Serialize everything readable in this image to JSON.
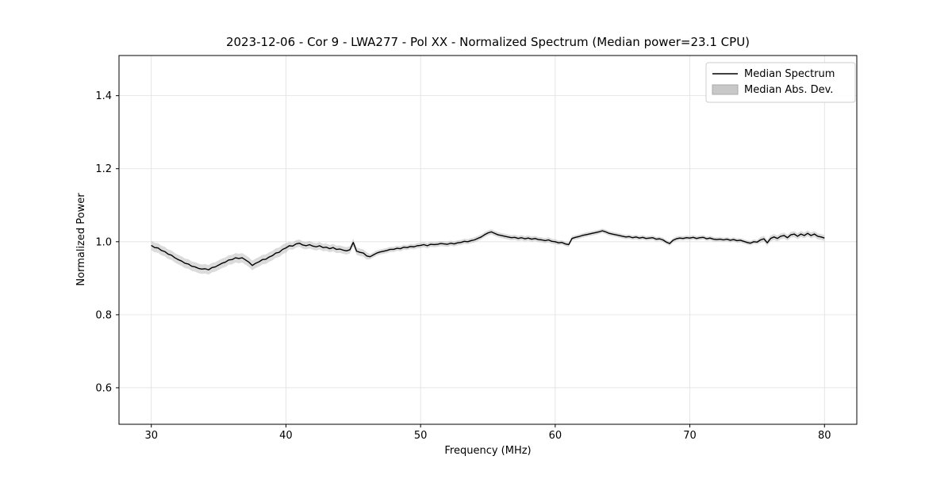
{
  "figure": {
    "background": "#ffffff",
    "title": "2023-12-06 - Cor 9 - LWA277 - Pol XX - Normalized Spectrum (Median power=23.1 CPU)",
    "xlabel": "Frequency (MHz)",
    "ylabel": "Normalized Power"
  },
  "legend": {
    "items": [
      {
        "label": "Median Spectrum",
        "type": "line",
        "color": "#000000"
      },
      {
        "label": "Median Abs. Dev.",
        "type": "patch",
        "color": "#c0c0c0",
        "edge": "#999999"
      }
    ],
    "position": "upper right"
  },
  "colors": {
    "line": "#000000",
    "band_fill": "#b0b0b0",
    "band_opacity": 0.45,
    "grid": "#e0e0e0",
    "frame": "#000000"
  },
  "chart_data": {
    "type": "line",
    "title": "2023-12-06 - Cor 9 - LWA277 - Pol XX - Normalized Spectrum (Median power=23.1 CPU)",
    "xlabel": "Frequency (MHz)",
    "ylabel": "Normalized Power",
    "xlim": [
      27.6,
      82.4
    ],
    "ylim": [
      0.5,
      1.51
    ],
    "xticks": [
      30,
      40,
      50,
      60,
      70,
      80
    ],
    "yticks": [
      0.6,
      0.8,
      1.0,
      1.2,
      1.4
    ],
    "grid": true,
    "legend_position": "upper right",
    "series": [
      {
        "name": "Median Spectrum",
        "kind": "line",
        "color": "#000000",
        "x_start": 30,
        "x_step": 0.25,
        "y": [
          0.99,
          0.984,
          0.983,
          0.976,
          0.973,
          0.966,
          0.963,
          0.956,
          0.951,
          0.947,
          0.941,
          0.939,
          0.933,
          0.931,
          0.927,
          0.925,
          0.926,
          0.923,
          0.929,
          0.931,
          0.936,
          0.941,
          0.944,
          0.95,
          0.951,
          0.956,
          0.954,
          0.956,
          0.95,
          0.944,
          0.935,
          0.941,
          0.945,
          0.951,
          0.952,
          0.958,
          0.962,
          0.969,
          0.971,
          0.979,
          0.983,
          0.989,
          0.988,
          0.994,
          0.996,
          0.991,
          0.989,
          0.992,
          0.988,
          0.986,
          0.989,
          0.984,
          0.985,
          0.981,
          0.984,
          0.979,
          0.98,
          0.977,
          0.975,
          0.978,
          0.998,
          0.974,
          0.971,
          0.969,
          0.961,
          0.959,
          0.964,
          0.969,
          0.972,
          0.974,
          0.976,
          0.979,
          0.979,
          0.982,
          0.981,
          0.985,
          0.984,
          0.987,
          0.986,
          0.989,
          0.99,
          0.992,
          0.989,
          0.993,
          0.992,
          0.993,
          0.995,
          0.994,
          0.993,
          0.996,
          0.994,
          0.997,
          0.998,
          1.001,
          1.0,
          1.003,
          1.005,
          1.009,
          1.013,
          1.019,
          1.024,
          1.027,
          1.023,
          1.019,
          1.017,
          1.015,
          1.013,
          1.011,
          1.012,
          1.009,
          1.011,
          1.008,
          1.01,
          1.007,
          1.009,
          1.006,
          1.005,
          1.003,
          1.005,
          1.001,
          1.0,
          0.997,
          0.998,
          0.994,
          0.992,
          1.009,
          1.012,
          1.014,
          1.017,
          1.019,
          1.021,
          1.023,
          1.025,
          1.027,
          1.03,
          1.027,
          1.023,
          1.021,
          1.019,
          1.017,
          1.015,
          1.013,
          1.014,
          1.011,
          1.013,
          1.01,
          1.012,
          1.009,
          1.01,
          1.011,
          1.007,
          1.008,
          1.005,
          0.999,
          0.995,
          1.004,
          1.008,
          1.01,
          1.009,
          1.011,
          1.01,
          1.012,
          1.009,
          1.011,
          1.012,
          1.008,
          1.01,
          1.007,
          1.006,
          1.007,
          1.005,
          1.007,
          1.004,
          1.006,
          1.003,
          1.004,
          1.001,
          0.998,
          0.996,
          1.0,
          0.999,
          1.005,
          1.008,
          0.997,
          1.009,
          1.013,
          1.009,
          1.015,
          1.017,
          1.011,
          1.019,
          1.021,
          1.015,
          1.021,
          1.017,
          1.023,
          1.017,
          1.021,
          1.015,
          1.013,
          1.01
        ]
      },
      {
        "name": "Median Abs. Dev.",
        "kind": "band",
        "color": "#b0b0b0",
        "mad_segments": [
          {
            "x_max": 40,
            "value": 0.013
          },
          {
            "x_max": 46,
            "value": 0.01
          },
          {
            "x_max": 60,
            "value": 0.007
          },
          {
            "x_max": 75,
            "value": 0.006
          },
          {
            "x_max": 82,
            "value": 0.008
          }
        ]
      }
    ]
  }
}
